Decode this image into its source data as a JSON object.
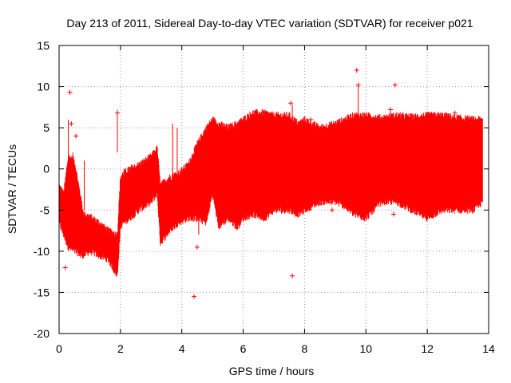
{
  "chart_data": {
    "type": "scatter",
    "title": "Day 213 of 2011, Sidereal Day-to-day VTEC variation (SDTVAR) for receiver p021",
    "xlabel": "GPS time / hours",
    "ylabel": "SDTVAR / TECUs",
    "xlim": [
      0,
      14
    ],
    "ylim": [
      -20,
      15
    ],
    "xticks": [
      0,
      2,
      4,
      6,
      8,
      10,
      12,
      14
    ],
    "yticks": [
      -20,
      -15,
      -10,
      -5,
      0,
      5,
      10,
      15
    ],
    "grid": true,
    "marker": "+",
    "color": "#ff0000",
    "series": [
      {
        "name": "SDTVAR band",
        "x": [
          0.0,
          0.15,
          0.3,
          0.5,
          0.8,
          1.0,
          1.3,
          1.6,
          1.9,
          2.0,
          2.1,
          2.3,
          2.6,
          3.0,
          3.2,
          3.3,
          3.6,
          3.9,
          4.2,
          4.5,
          4.8,
          5.0,
          5.2,
          5.5,
          5.8,
          6.0,
          6.3,
          6.7,
          7.0,
          7.5,
          7.8,
          8.0,
          8.5,
          9.0,
          9.3,
          9.6,
          10.0,
          10.5,
          11.0,
          11.5,
          12.0,
          12.5,
          13.0,
          13.5,
          13.8
        ],
        "upper": [
          -2.0,
          -3.0,
          1.5,
          1.0,
          -5.5,
          -5.8,
          -6.5,
          -7.5,
          -8.0,
          -1.0,
          -0.5,
          0.0,
          0.5,
          1.5,
          2.5,
          -2.0,
          -1.0,
          -0.5,
          0.5,
          3.0,
          5.0,
          6.0,
          5.5,
          5.0,
          5.5,
          6.0,
          6.8,
          6.8,
          6.5,
          6.5,
          5.5,
          6.0,
          5.0,
          5.5,
          6.0,
          6.5,
          6.5,
          6.2,
          6.5,
          6.3,
          6.5,
          6.5,
          6.2,
          6.0,
          6.0
        ],
        "lower": [
          -6.5,
          -8.0,
          -9.5,
          -10.0,
          -10.5,
          -10.0,
          -10.5,
          -11.0,
          -13.0,
          -7.0,
          -6.5,
          -6.0,
          -5.0,
          -4.0,
          -3.0,
          -9.0,
          -7.5,
          -6.5,
          -6.0,
          -6.0,
          -6.5,
          -3.0,
          -7.0,
          -6.0,
          -7.0,
          -6.0,
          -5.5,
          -6.0,
          -5.0,
          -5.0,
          -5.5,
          -5.0,
          -4.0,
          -4.0,
          -4.5,
          -5.5,
          -6.0,
          -4.0,
          -4.0,
          -5.0,
          -6.0,
          -5.0,
          -5.0,
          -5.0,
          -4.0
        ]
      },
      {
        "name": "isolated points",
        "points": [
          [
            0.2,
            -12.0
          ],
          [
            0.35,
            9.3
          ],
          [
            0.4,
            5.5
          ],
          [
            0.55,
            4.0
          ],
          [
            0.7,
            -10.5
          ],
          [
            1.9,
            6.8
          ],
          [
            4.4,
            -15.5
          ],
          [
            4.5,
            -9.5
          ],
          [
            5.8,
            -7.2
          ],
          [
            7.6,
            -13.0
          ],
          [
            7.55,
            8.0
          ],
          [
            8.2,
            6.0
          ],
          [
            8.9,
            -5.0
          ],
          [
            9.7,
            12.0
          ],
          [
            9.75,
            10.2
          ],
          [
            10.95,
            10.2
          ],
          [
            10.8,
            7.2
          ],
          [
            10.9,
            -5.5
          ],
          [
            11.6,
            -4.5
          ],
          [
            12.9,
            6.8
          ],
          [
            13.4,
            -4.8
          ]
        ]
      }
    ]
  }
}
